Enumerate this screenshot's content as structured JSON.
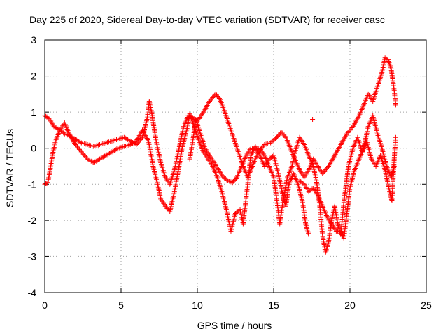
{
  "chart_data": {
    "type": "scatter",
    "title": "Day 225 of 2020, Sidereal Day-to-day VTEC variation (SDTVAR) for receiver casc",
    "xlabel": "GPS time / hours",
    "ylabel": "SDTVAR / TECUs",
    "xlim": [
      0,
      25
    ],
    "ylim": [
      -4,
      3
    ],
    "xticks": [
      0,
      5,
      10,
      15,
      20,
      25
    ],
    "xtick_labels": [
      "0",
      "5",
      "10",
      "15",
      "20",
      "25"
    ],
    "yticks": [
      -4,
      -3,
      -2,
      -1,
      0,
      1,
      2,
      3
    ],
    "ytick_labels": [
      "-4",
      "-3",
      "-2",
      "-1",
      "0",
      "1",
      "2",
      "3"
    ],
    "grid": true,
    "marker": "+",
    "color": "#ff0000",
    "series": [
      {
        "name": "track-1",
        "points": [
          [
            0.0,
            0.9
          ],
          [
            0.2,
            0.85
          ],
          [
            0.4,
            0.75
          ],
          [
            0.6,
            0.6
          ],
          [
            0.8,
            0.55
          ],
          [
            1.0,
            0.5
          ],
          [
            1.3,
            0.4
          ],
          [
            1.6,
            0.35
          ],
          [
            2.0,
            0.25
          ],
          [
            2.4,
            0.15
          ],
          [
            2.8,
            0.1
          ],
          [
            3.2,
            0.05
          ],
          [
            3.6,
            0.1
          ],
          [
            4.0,
            0.15
          ],
          [
            4.4,
            0.2
          ],
          [
            4.8,
            0.25
          ],
          [
            5.2,
            0.3
          ],
          [
            5.6,
            0.2
          ],
          [
            6.0,
            0.1
          ],
          [
            6.4,
            0.3
          ],
          [
            6.7,
            0.8
          ],
          [
            6.85,
            1.3
          ],
          [
            7.0,
            1.0
          ],
          [
            7.3,
            0.2
          ],
          [
            7.6,
            -0.4
          ],
          [
            7.9,
            -0.8
          ],
          [
            8.2,
            -1.0
          ],
          [
            8.5,
            -0.6
          ],
          [
            8.8,
            0.0
          ],
          [
            9.1,
            0.6
          ],
          [
            9.4,
            0.9
          ],
          [
            9.7,
            0.85
          ],
          [
            10.0,
            0.75
          ],
          [
            10.4,
            1.0
          ],
          [
            10.8,
            1.3
          ],
          [
            11.2,
            1.5
          ],
          [
            11.5,
            1.35
          ],
          [
            11.8,
            1.0
          ],
          [
            12.2,
            0.5
          ],
          [
            12.6,
            0.0
          ],
          [
            13.0,
            -0.5
          ],
          [
            13.3,
            -0.8
          ],
          [
            13.6,
            -0.5
          ],
          [
            14.0,
            -0.1
          ],
          [
            14.4,
            0.1
          ],
          [
            14.8,
            0.15
          ],
          [
            15.2,
            0.3
          ],
          [
            15.5,
            0.45
          ],
          [
            15.8,
            0.3
          ],
          [
            16.1,
            0.0
          ],
          [
            16.4,
            -0.3
          ],
          [
            16.7,
            -0.6
          ],
          [
            17.0,
            -0.8
          ],
          [
            17.3,
            -0.6
          ],
          [
            17.6,
            -0.3
          ],
          [
            17.9,
            -0.5
          ],
          [
            18.2,
            -0.7
          ],
          [
            18.6,
            -0.5
          ],
          [
            19.0,
            -0.2
          ],
          [
            19.4,
            0.1
          ],
          [
            19.8,
            0.4
          ],
          [
            20.2,
            0.6
          ],
          [
            20.6,
            0.9
          ],
          [
            20.9,
            1.2
          ],
          [
            21.2,
            1.5
          ],
          [
            21.5,
            1.3
          ],
          [
            21.8,
            1.7
          ],
          [
            22.1,
            2.1
          ],
          [
            22.3,
            2.5
          ],
          [
            22.5,
            2.45
          ],
          [
            22.7,
            2.2
          ],
          [
            22.9,
            1.6
          ],
          [
            23.0,
            1.2
          ]
        ]
      },
      {
        "name": "track-2",
        "points": [
          [
            0.0,
            -1.0
          ],
          [
            0.2,
            -0.95
          ],
          [
            0.35,
            -0.6
          ],
          [
            0.5,
            -0.2
          ],
          [
            0.7,
            0.2
          ],
          [
            1.0,
            0.5
          ],
          [
            1.3,
            0.7
          ],
          [
            1.6,
            0.4
          ],
          [
            2.0,
            0.1
          ],
          [
            2.4,
            -0.1
          ],
          [
            2.8,
            -0.3
          ],
          [
            3.2,
            -0.4
          ],
          [
            3.6,
            -0.3
          ],
          [
            4.0,
            -0.2
          ],
          [
            4.4,
            -0.1
          ],
          [
            4.8,
            0.0
          ],
          [
            5.2,
            0.05
          ],
          [
            5.6,
            0.1
          ],
          [
            6.0,
            0.2
          ],
          [
            6.4,
            0.5
          ],
          [
            6.8,
            0.2
          ],
          [
            7.1,
            -0.5
          ],
          [
            7.4,
            -1.0
          ],
          [
            7.6,
            -1.4
          ],
          [
            7.9,
            -1.6
          ],
          [
            8.2,
            -1.75
          ],
          [
            8.5,
            -1.2
          ],
          [
            8.8,
            -0.5
          ],
          [
            9.0,
            0.0
          ],
          [
            9.3,
            0.5
          ],
          [
            9.5,
            0.95
          ],
          [
            9.8,
            0.6
          ],
          [
            10.1,
            0.2
          ],
          [
            10.4,
            -0.1
          ],
          [
            10.7,
            -0.3
          ],
          [
            11.0,
            -0.5
          ],
          [
            11.3,
            -0.8
          ],
          [
            11.6,
            -1.2
          ],
          [
            11.9,
            -1.7
          ],
          [
            12.2,
            -2.3
          ],
          [
            12.5,
            -1.8
          ],
          [
            12.8,
            -1.7
          ],
          [
            13.0,
            -2.1
          ],
          [
            13.3,
            -1.0
          ],
          [
            13.5,
            -0.2
          ],
          [
            13.8,
            0.05
          ],
          [
            14.1,
            -0.2
          ],
          [
            14.4,
            -0.5
          ],
          [
            14.7,
            -0.3
          ],
          [
            15.0,
            -0.2
          ],
          [
            15.3,
            -0.7
          ],
          [
            15.6,
            -1.3
          ],
          [
            15.8,
            -1.6
          ],
          [
            16.0,
            -1.0
          ],
          [
            16.3,
            -0.7
          ],
          [
            16.6,
            -1.0
          ],
          [
            16.9,
            -1.5
          ],
          [
            17.1,
            -2.1
          ],
          [
            17.3,
            -2.4
          ],
          [
            17.55,
            0.8
          ]
        ]
      },
      {
        "name": "track-3",
        "points": [
          [
            9.5,
            -0.3
          ],
          [
            9.7,
            0.2
          ],
          [
            9.9,
            0.8
          ],
          [
            10.2,
            0.4
          ],
          [
            10.5,
            0.0
          ],
          [
            10.8,
            -0.2
          ],
          [
            11.1,
            -0.4
          ],
          [
            11.4,
            -0.6
          ],
          [
            11.7,
            -0.8
          ],
          [
            12.0,
            -0.9
          ],
          [
            12.3,
            -0.95
          ],
          [
            12.6,
            -0.8
          ],
          [
            12.9,
            -0.5
          ],
          [
            13.2,
            -0.2
          ],
          [
            13.5,
            0.0
          ],
          [
            13.8,
            -0.05
          ],
          [
            14.1,
            0.0
          ],
          [
            14.4,
            -0.2
          ],
          [
            14.7,
            -0.5
          ],
          [
            15.0,
            -0.8
          ],
          [
            15.2,
            -1.4
          ],
          [
            15.4,
            -2.1
          ],
          [
            15.6,
            -1.5
          ],
          [
            15.9,
            -0.8
          ],
          [
            16.2,
            -0.5
          ],
          [
            16.4,
            -0.1
          ],
          [
            16.7,
            0.3
          ],
          [
            17.0,
            0.1
          ],
          [
            17.3,
            -0.2
          ],
          [
            17.6,
            -0.5
          ],
          [
            17.8,
            -0.9
          ],
          [
            18.0,
            -1.5
          ],
          [
            18.2,
            -2.4
          ],
          [
            18.4,
            -2.9
          ],
          [
            18.6,
            -2.6
          ],
          [
            18.8,
            -2.0
          ],
          [
            19.0,
            -1.6
          ],
          [
            19.2,
            -2.1
          ],
          [
            19.4,
            -2.4
          ],
          [
            19.6,
            -1.5
          ],
          [
            19.9,
            -0.5
          ],
          [
            20.2,
            0.0
          ],
          [
            20.5,
            0.3
          ],
          [
            20.8,
            -0.1
          ],
          [
            21.1,
            0.2
          ],
          [
            21.4,
            -0.3
          ],
          [
            21.7,
            -0.5
          ],
          [
            22.0,
            -0.2
          ],
          [
            22.3,
            -0.6
          ],
          [
            22.6,
            -1.2
          ],
          [
            22.75,
            -1.45
          ],
          [
            22.9,
            -0.3
          ],
          [
            23.0,
            0.3
          ]
        ]
      },
      {
        "name": "track-4",
        "points": [
          [
            16.7,
            -0.9
          ],
          [
            17.0,
            -1.0
          ],
          [
            17.3,
            -1.2
          ],
          [
            17.6,
            -1.1
          ],
          [
            17.9,
            -1.3
          ],
          [
            18.2,
            -1.6
          ],
          [
            18.5,
            -1.9
          ],
          [
            18.8,
            -2.1
          ],
          [
            19.1,
            -2.3
          ],
          [
            19.4,
            -2.3
          ],
          [
            19.6,
            -2.5
          ],
          [
            19.8,
            -1.8
          ],
          [
            20.0,
            -1.1
          ],
          [
            20.3,
            -0.6
          ],
          [
            20.6,
            -0.3
          ],
          [
            20.9,
            0.0
          ],
          [
            21.2,
            0.6
          ],
          [
            21.5,
            0.9
          ],
          [
            21.8,
            0.4
          ],
          [
            22.1,
            0.0
          ],
          [
            22.4,
            -0.5
          ],
          [
            22.7,
            -0.8
          ],
          [
            22.9,
            -0.5
          ]
        ]
      }
    ]
  }
}
